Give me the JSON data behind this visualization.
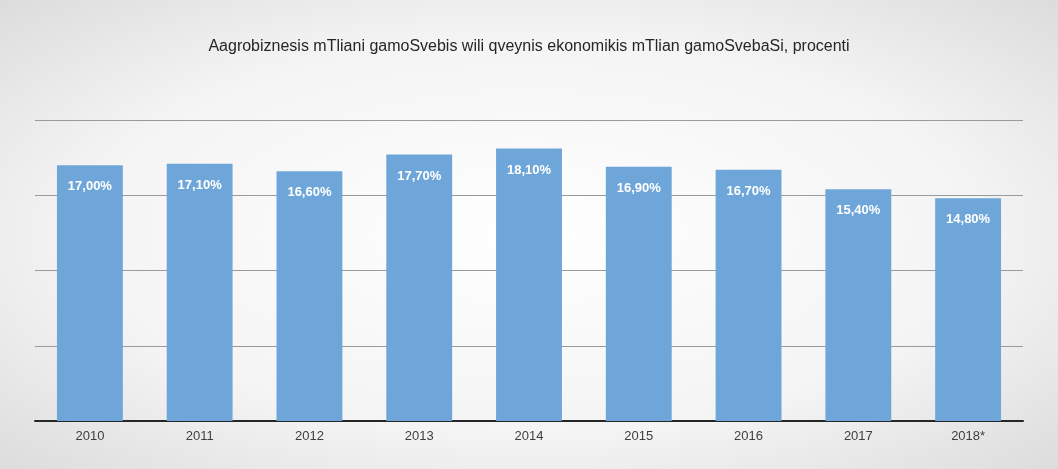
{
  "chart_data": {
    "type": "bar",
    "title": "Aagrobiznesis mTliani gamoSvebis wili qveynis ekonomikis mTlian gamoSvebaSi, procenti",
    "categories": [
      "2010",
      "2011",
      "2012",
      "2013",
      "2014",
      "2015",
      "2016",
      "2017",
      "2018*"
    ],
    "values": [
      17.0,
      17.1,
      16.6,
      17.7,
      18.1,
      16.9,
      16.7,
      15.4,
      14.8
    ],
    "value_labels": [
      "17,00%",
      "17,10%",
      "16,60%",
      "17,70%",
      "18,10%",
      "16,90%",
      "16,70%",
      "15,40%",
      "14,80%"
    ],
    "color": "#6fa6d9",
    "ylim": [
      0,
      20
    ],
    "yticks": [
      {
        "value": 0,
        "label": null
      },
      {
        "value": 5,
        "label": null
      },
      {
        "value": 10,
        "label": null
      },
      {
        "value": 15,
        "label": null
      },
      {
        "value": 20,
        "label": null
      }
    ],
    "grid": "y",
    "tick_labels": "x"
  }
}
